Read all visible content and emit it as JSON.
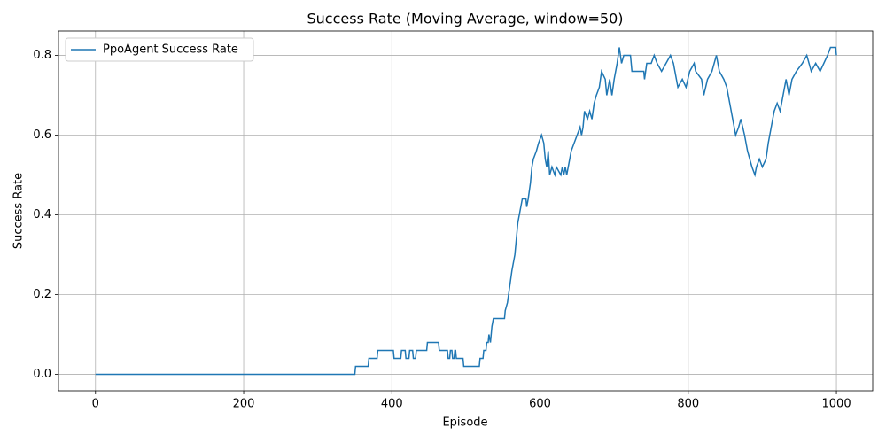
{
  "chart_data": {
    "type": "line",
    "title": "Success Rate (Moving Average, window=50)",
    "x_label": "Episode",
    "y_label": "Success Rate",
    "x": [
      0,
      350,
      351,
      368,
      369,
      380,
      381,
      402,
      403,
      412,
      413,
      418,
      419,
      423,
      424,
      428,
      429,
      432,
      433,
      447,
      448,
      463,
      464,
      475,
      476,
      478,
      479,
      481,
      482,
      484,
      485,
      486,
      487,
      496,
      497,
      518,
      519,
      523,
      524,
      527,
      528,
      530,
      531,
      533,
      535,
      537,
      552,
      553,
      556,
      559,
      562,
      564,
      566,
      568,
      570,
      572,
      574,
      576,
      581,
      582,
      584,
      587,
      589,
      591,
      595,
      598,
      602,
      605,
      607,
      609,
      611,
      613,
      616,
      620,
      622,
      628,
      630,
      632,
      634,
      636,
      640,
      642,
      646,
      650,
      654,
      656,
      658,
      660,
      664,
      667,
      670,
      673,
      676,
      680,
      683,
      688,
      690,
      694,
      697,
      700,
      704,
      707,
      710,
      713,
      722,
      724,
      740,
      741,
      744,
      750,
      754,
      758,
      764,
      770,
      776,
      780,
      786,
      792,
      797,
      802,
      808,
      810,
      818,
      821,
      826,
      832,
      838,
      842,
      848,
      852,
      856,
      860,
      864,
      868,
      871,
      876,
      880,
      886,
      890,
      892,
      896,
      900,
      905,
      908,
      912,
      916,
      920,
      924,
      928,
      932,
      936,
      940,
      946,
      954,
      960,
      966,
      972,
      978,
      988,
      992,
      999,
      1000
    ],
    "series": [
      {
        "name": "PpoAgent Success Rate",
        "color": "#1f77b4",
        "values": [
          0,
          0,
          0.02,
          0.02,
          0.04,
          0.04,
          0.06,
          0.06,
          0.04,
          0.04,
          0.06,
          0.06,
          0.04,
          0.04,
          0.06,
          0.06,
          0.04,
          0.04,
          0.06,
          0.06,
          0.08,
          0.08,
          0.06,
          0.06,
          0.04,
          0.04,
          0.06,
          0.06,
          0.04,
          0.04,
          0.06,
          0.06,
          0.04,
          0.04,
          0.02,
          0.02,
          0.04,
          0.04,
          0.06,
          0.06,
          0.08,
          0.08,
          0.1,
          0.08,
          0.12,
          0.14,
          0.14,
          0.16,
          0.18,
          0.22,
          0.26,
          0.28,
          0.3,
          0.34,
          0.38,
          0.4,
          0.42,
          0.44,
          0.44,
          0.42,
          0.44,
          0.48,
          0.52,
          0.54,
          0.56,
          0.58,
          0.6,
          0.58,
          0.54,
          0.52,
          0.56,
          0.5,
          0.52,
          0.5,
          0.52,
          0.5,
          0.52,
          0.5,
          0.52,
          0.5,
          0.54,
          0.56,
          0.58,
          0.6,
          0.62,
          0.6,
          0.62,
          0.66,
          0.64,
          0.66,
          0.64,
          0.68,
          0.7,
          0.72,
          0.76,
          0.74,
          0.7,
          0.74,
          0.7,
          0.74,
          0.78,
          0.82,
          0.78,
          0.8,
          0.8,
          0.76,
          0.76,
          0.74,
          0.78,
          0.78,
          0.8,
          0.78,
          0.76,
          0.78,
          0.8,
          0.78,
          0.72,
          0.74,
          0.72,
          0.76,
          0.78,
          0.76,
          0.74,
          0.7,
          0.74,
          0.76,
          0.8,
          0.76,
          0.74,
          0.72,
          0.68,
          0.64,
          0.6,
          0.62,
          0.64,
          0.6,
          0.56,
          0.52,
          0.5,
          0.52,
          0.54,
          0.52,
          0.54,
          0.58,
          0.62,
          0.66,
          0.68,
          0.66,
          0.7,
          0.74,
          0.7,
          0.74,
          0.76,
          0.78,
          0.8,
          0.76,
          0.78,
          0.76,
          0.8,
          0.82,
          0.82,
          0.8
        ]
      }
    ],
    "xlim": [
      -49.95,
      1048.95
    ],
    "ylim": [
      -0.041,
      0.861
    ],
    "xticks": [
      0,
      200,
      400,
      600,
      800,
      1000
    ],
    "yticks": [
      {
        "value": 0,
        "label": "0.0"
      },
      0.2,
      0.4,
      0.6,
      0.8
    ],
    "grid": true,
    "legend": "upper left"
  }
}
